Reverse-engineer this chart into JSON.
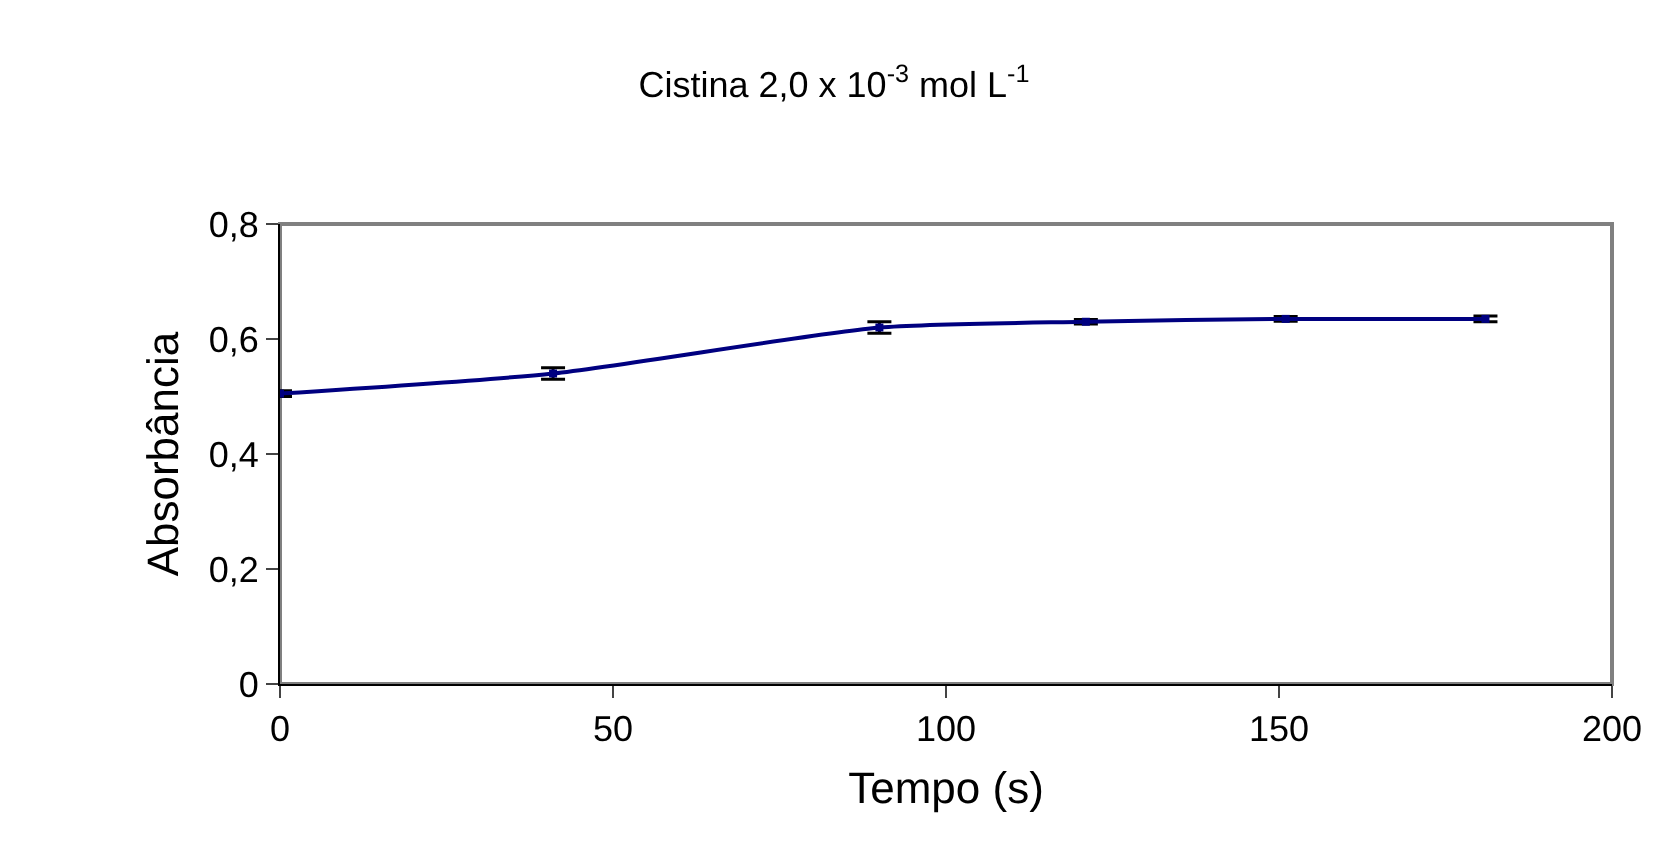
{
  "chart_data": {
    "type": "line",
    "title": "Cistina 2,0 x 10$^{-3}$ mol L$^{-1}$",
    "xlabel": "Tempo (s)",
    "ylabel": "Absorbância",
    "x": [
      0,
      41,
      90,
      121,
      151,
      181
    ],
    "series": [
      {
        "color": "#000080",
        "values": [
          0.505,
          0.54,
          0.62,
          0.63,
          0.635,
          0.635
        ],
        "errors": [
          0.005,
          0.01,
          0.01,
          0.004,
          0.004,
          0.005
        ]
      }
    ],
    "xlim": [
      0,
      200
    ],
    "xticks": [
      0,
      50,
      100,
      150,
      200
    ],
    "ylim": [
      0,
      0.8
    ],
    "yticks": [
      0,
      {
        "value": 0.2,
        "label": "0,2"
      },
      {
        "value": 0.4,
        "label": "0,4"
      },
      {
        "value": 0.6,
        "label": "0,6"
      },
      {
        "value": 0.8,
        "label": "0,8"
      }
    ],
    "grid": false,
    "legend": false,
    "marker": "square",
    "line_style": "solid"
  }
}
